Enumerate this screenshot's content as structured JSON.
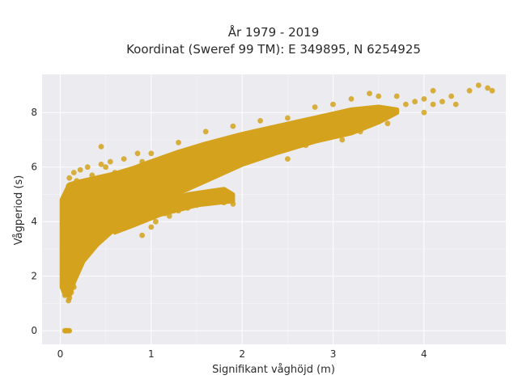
{
  "chart_data": {
    "type": "scatter",
    "title_line1": "År 1979 - 2019",
    "title_line2": "Koordinat (Sweref 99 TM): E 349895, N 6254925",
    "xlabel": "Signifikant våghöjd (m)",
    "ylabel": "Vågperiod (s)",
    "xlim": [
      -0.2,
      4.9
    ],
    "ylim": [
      -0.5,
      9.4
    ],
    "xticks": [
      0,
      1,
      2,
      3,
      4
    ],
    "yticks": [
      0,
      2,
      4,
      6,
      8
    ],
    "xtick_labels": [
      "0",
      "1",
      "2",
      "3",
      "4"
    ],
    "ytick_labels": [
      "0",
      "2",
      "4",
      "6",
      "8"
    ],
    "grid": true,
    "legend": false,
    "colors": {
      "point": "#d4a21c",
      "plot_bg": "#ebebf0",
      "grid": "#ffffff"
    },
    "points": [
      [
        0.05,
        0
      ],
      [
        0.06,
        0
      ],
      [
        0.07,
        0
      ],
      [
        0.09,
        0
      ],
      [
        0.1,
        0
      ],
      [
        0.05,
        1.3
      ],
      [
        0.07,
        1.5
      ],
      [
        0.09,
        1.1
      ],
      [
        0.1,
        1.2
      ],
      [
        0.12,
        1.4
      ],
      [
        0.15,
        1.6
      ],
      [
        0.05,
        2.0
      ],
      [
        0.06,
        2.6
      ],
      [
        0.07,
        3.3
      ],
      [
        0.08,
        3.9
      ],
      [
        0.08,
        4.6
      ],
      [
        0.09,
        5.3
      ],
      [
        0.1,
        5.6
      ],
      [
        0.15,
        5.8
      ],
      [
        0.18,
        5.5
      ],
      [
        0.22,
        5.9
      ],
      [
        0.3,
        6.0
      ],
      [
        0.35,
        5.7
      ],
      [
        0.45,
        6.1
      ],
      [
        0.5,
        6.0
      ],
      [
        0.55,
        6.2
      ],
      [
        0.6,
        5.8
      ],
      [
        0.45,
        6.75
      ],
      [
        0.7,
        6.3
      ],
      [
        0.85,
        6.5
      ],
      [
        0.9,
        6.2
      ],
      [
        0.9,
        3.5
      ],
      [
        1.0,
        3.8
      ],
      [
        1.05,
        4.0
      ],
      [
        1.15,
        4.3
      ],
      [
        1.2,
        4.2
      ],
      [
        1.3,
        4.4
      ],
      [
        1.4,
        4.5
      ],
      [
        1.5,
        4.6
      ],
      [
        1.6,
        4.8
      ],
      [
        1.7,
        5.0
      ],
      [
        1.8,
        4.7
      ],
      [
        1.9,
        4.65
      ],
      [
        1.2,
        5.8
      ],
      [
        1.0,
        6.5
      ],
      [
        1.3,
        6.9
      ],
      [
        1.6,
        7.3
      ],
      [
        1.9,
        7.5
      ],
      [
        2.2,
        7.7
      ],
      [
        2.5,
        7.8
      ],
      [
        2.8,
        8.2
      ],
      [
        3.0,
        8.3
      ],
      [
        3.2,
        8.5
      ],
      [
        3.4,
        8.7
      ],
      [
        3.5,
        8.6
      ],
      [
        3.7,
        8.6
      ],
      [
        3.8,
        8.3
      ],
      [
        3.9,
        8.4
      ],
      [
        4.0,
        8.5
      ],
      [
        4.1,
        8.3
      ],
      [
        4.2,
        8.4
      ],
      [
        4.1,
        8.8
      ],
      [
        4.3,
        8.6
      ],
      [
        4.35,
        8.3
      ],
      [
        4.5,
        8.8
      ],
      [
        4.6,
        9.0
      ],
      [
        4.7,
        8.9
      ],
      [
        4.75,
        8.8
      ],
      [
        3.1,
        7.0
      ],
      [
        2.9,
        7.1
      ],
      [
        2.6,
        7.0
      ],
      [
        3.3,
        7.3
      ],
      [
        3.6,
        7.6
      ],
      [
        4.0,
        8.0
      ],
      [
        3.5,
        7.9
      ],
      [
        2.7,
        6.8
      ],
      [
        2.4,
        6.7
      ],
      [
        2.2,
        6.5
      ],
      [
        2.5,
        6.3
      ]
    ],
    "band": {
      "upper": [
        [
          0.02,
          4.8
        ],
        [
          0.1,
          5.35
        ],
        [
          0.2,
          5.45
        ],
        [
          0.4,
          5.6
        ],
        [
          0.6,
          5.75
        ],
        [
          0.8,
          5.95
        ],
        [
          1.0,
          6.2
        ],
        [
          1.3,
          6.55
        ],
        [
          1.6,
          6.85
        ],
        [
          2.0,
          7.2
        ],
        [
          2.4,
          7.5
        ],
        [
          2.8,
          7.8
        ],
        [
          3.2,
          8.1
        ],
        [
          3.5,
          8.2
        ],
        [
          3.7,
          8.1
        ]
      ],
      "lower": [
        [
          3.7,
          8.0
        ],
        [
          3.5,
          7.65
        ],
        [
          3.2,
          7.25
        ],
        [
          2.8,
          6.95
        ],
        [
          2.4,
          6.55
        ],
        [
          2.0,
          6.1
        ],
        [
          1.7,
          5.65
        ],
        [
          1.4,
          5.2
        ],
        [
          1.1,
          4.75
        ],
        [
          0.8,
          4.25
        ],
        [
          0.6,
          3.75
        ],
        [
          0.4,
          3.15
        ],
        [
          0.25,
          2.55
        ],
        [
          0.15,
          1.8
        ],
        [
          0.1,
          1.3
        ],
        [
          0.05,
          1.35
        ],
        [
          0.02,
          1.6
        ]
      ]
    },
    "band2": {
      "upper": [
        [
          0.6,
          4.0
        ],
        [
          1.0,
          4.6
        ],
        [
          1.4,
          5.0
        ],
        [
          1.8,
          5.2
        ],
        [
          1.9,
          5.0
        ]
      ],
      "lower": [
        [
          1.9,
          4.75
        ],
        [
          1.5,
          4.6
        ],
        [
          1.1,
          4.25
        ],
        [
          0.8,
          3.85
        ],
        [
          0.6,
          3.6
        ]
      ]
    }
  }
}
